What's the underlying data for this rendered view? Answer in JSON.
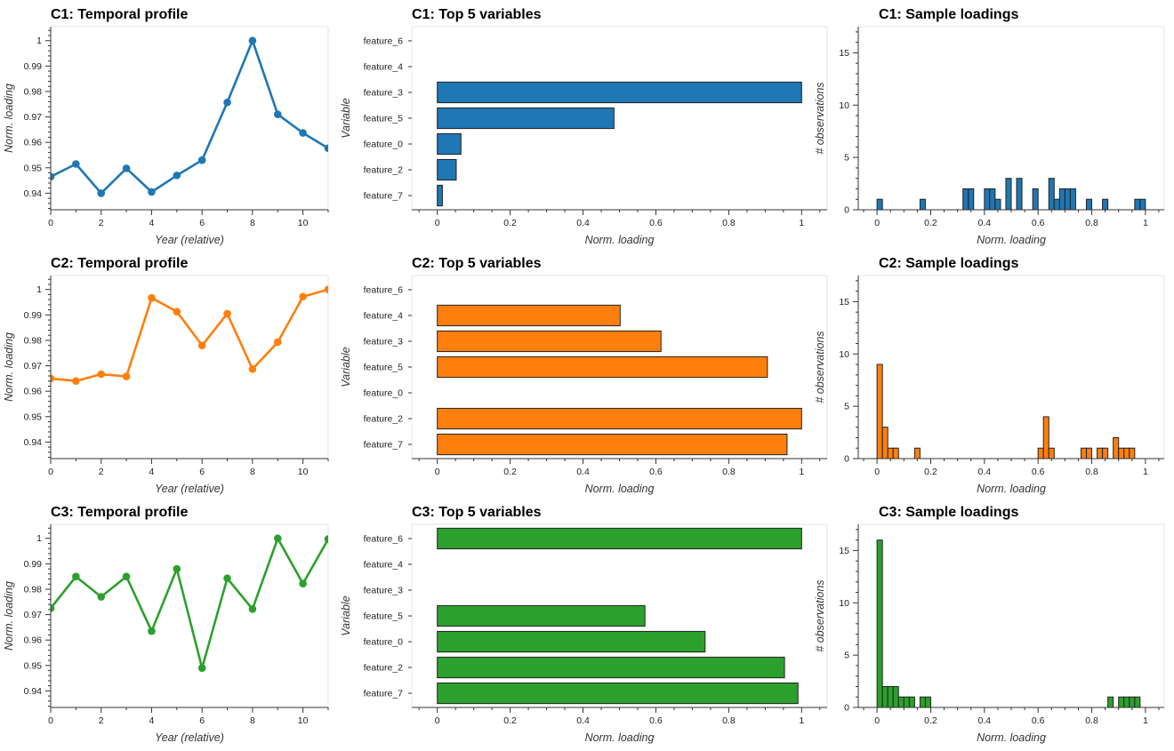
{
  "colors": {
    "C1": "#1f77b4",
    "C2": "#ff7f0e",
    "C3": "#2ca02c"
  },
  "chart_data": [
    {
      "id": "c1-temporal",
      "type": "line",
      "title": "C1: Temporal profile",
      "xlabel": "Year (relative)",
      "ylabel": "Norm. loading",
      "x": [
        0,
        1,
        2,
        3,
        4,
        5,
        6,
        7,
        8,
        9,
        10,
        11
      ],
      "series": [
        {
          "values": [
            0.9465,
            0.9515,
            0.94,
            0.9498,
            0.9405,
            0.947,
            0.953,
            0.9757,
            1.0,
            0.971,
            0.9637,
            0.9577
          ]
        }
      ],
      "xlim": [
        0,
        11
      ],
      "ylim": [
        0.9335,
        1.0055
      ],
      "xticks": [
        0,
        2,
        4,
        6,
        8,
        10
      ],
      "yticks": [
        0.94,
        0.95,
        0.96,
        0.97,
        0.98,
        0.99,
        1
      ],
      "grid": false,
      "color_key": "C1"
    },
    {
      "id": "c1-top",
      "type": "bar",
      "orientation": "horizontal",
      "title": "C1: Top 5 variables",
      "xlabel": "Norm. loading",
      "ylabel": "Variable",
      "categories": [
        "feature_6",
        "feature_4",
        "feature_3",
        "feature_5",
        "feature_0",
        "feature_2",
        "feature_7"
      ],
      "values": [
        0,
        0,
        1.0,
        0.485,
        0.065,
        0.052,
        0.014
      ],
      "xlim": [
        -0.07,
        1.07
      ],
      "xticks": [
        0,
        0.2,
        0.4,
        0.6,
        0.8,
        1
      ],
      "grid": false,
      "color_key": "C1"
    },
    {
      "id": "c1-hist",
      "type": "bar",
      "subtype": "histogram",
      "title": "C1: Sample loadings",
      "xlabel": "Norm. loading",
      "ylabel": "# observations",
      "bin_width": 0.02,
      "bins_start": [
        0.0,
        0.16,
        0.32,
        0.34,
        0.4,
        0.42,
        0.44,
        0.48,
        0.52,
        0.58,
        0.64,
        0.66,
        0.68,
        0.7,
        0.72,
        0.78,
        0.84,
        0.96,
        0.98
      ],
      "counts": [
        1,
        1,
        2,
        2,
        2,
        2,
        1,
        3,
        3,
        2,
        3,
        1,
        2,
        2,
        2,
        1,
        1,
        1,
        1
      ],
      "xlim": [
        -0.07,
        1.07
      ],
      "ylim": [
        0,
        17.5
      ],
      "xticks": [
        0,
        0.2,
        0.4,
        0.6,
        0.8,
        1
      ],
      "yticks": [
        0,
        5,
        10,
        15
      ],
      "grid": false,
      "color_key": "C1"
    },
    {
      "id": "c2-temporal",
      "type": "line",
      "title": "C2: Temporal profile",
      "xlabel": "Year (relative)",
      "ylabel": "Norm. loading",
      "x": [
        0,
        1,
        2,
        3,
        4,
        5,
        6,
        7,
        8,
        9,
        10,
        11
      ],
      "series": [
        {
          "values": [
            0.965,
            0.964,
            0.9667,
            0.9658,
            0.9967,
            0.9913,
            0.978,
            0.9905,
            0.9687,
            0.9793,
            0.9972,
            1.0
          ]
        }
      ],
      "xlim": [
        0,
        11
      ],
      "ylim": [
        0.9335,
        1.0055
      ],
      "xticks": [
        0,
        2,
        4,
        6,
        8,
        10
      ],
      "yticks": [
        0.94,
        0.95,
        0.96,
        0.97,
        0.98,
        0.99,
        1
      ],
      "grid": false,
      "color_key": "C2"
    },
    {
      "id": "c2-top",
      "type": "bar",
      "orientation": "horizontal",
      "title": "C2: Top 5 variables",
      "xlabel": "Norm. loading",
      "ylabel": "Variable",
      "categories": [
        "feature_6",
        "feature_4",
        "feature_3",
        "feature_5",
        "feature_0",
        "feature_2",
        "feature_7"
      ],
      "values": [
        0,
        0.502,
        0.614,
        0.906,
        0,
        1.0,
        0.96
      ],
      "xlim": [
        -0.07,
        1.07
      ],
      "xticks": [
        0,
        0.2,
        0.4,
        0.6,
        0.8,
        1
      ],
      "grid": false,
      "color_key": "C2"
    },
    {
      "id": "c2-hist",
      "type": "bar",
      "subtype": "histogram",
      "title": "C2: Sample loadings",
      "xlabel": "Norm. loading",
      "ylabel": "# observations",
      "bin_width": 0.02,
      "bins_start": [
        0.0,
        0.02,
        0.04,
        0.06,
        0.14,
        0.6,
        0.62,
        0.64,
        0.76,
        0.78,
        0.82,
        0.84,
        0.88,
        0.9,
        0.92,
        0.94
      ],
      "counts": [
        9,
        3,
        1,
        1,
        1,
        1,
        4,
        1,
        1,
        1,
        1,
        1,
        2,
        1,
        1,
        1
      ],
      "xlim": [
        -0.07,
        1.07
      ],
      "ylim": [
        0,
        17.5
      ],
      "xticks": [
        0,
        0.2,
        0.4,
        0.6,
        0.8,
        1
      ],
      "yticks": [
        0,
        5,
        10,
        15
      ],
      "grid": false,
      "color_key": "C2"
    },
    {
      "id": "c3-temporal",
      "type": "line",
      "title": "C3: Temporal profile",
      "xlabel": "Year (relative)",
      "ylabel": "Norm. loading",
      "x": [
        0,
        1,
        2,
        3,
        4,
        5,
        6,
        7,
        8,
        9,
        10,
        11
      ],
      "series": [
        {
          "values": [
            0.9725,
            0.985,
            0.977,
            0.985,
            0.9635,
            0.988,
            0.949,
            0.9843,
            0.9722,
            1.0,
            0.9822,
            0.9997
          ]
        }
      ],
      "xlim": [
        0,
        11
      ],
      "ylim": [
        0.9335,
        1.0055
      ],
      "xticks": [
        0,
        2,
        4,
        6,
        8,
        10
      ],
      "yticks": [
        0.94,
        0.95,
        0.96,
        0.97,
        0.98,
        0.99,
        1
      ],
      "grid": false,
      "color_key": "C3"
    },
    {
      "id": "c3-top",
      "type": "bar",
      "orientation": "horizontal",
      "title": "C3: Top 5 variables",
      "xlabel": "Norm. loading",
      "ylabel": "Variable",
      "categories": [
        "feature_6",
        "feature_4",
        "feature_3",
        "feature_5",
        "feature_0",
        "feature_2",
        "feature_7"
      ],
      "values": [
        1.0,
        0,
        0,
        0.57,
        0.735,
        0.953,
        0.99
      ],
      "xlim": [
        -0.07,
        1.07
      ],
      "xticks": [
        0,
        0.2,
        0.4,
        0.6,
        0.8,
        1
      ],
      "grid": false,
      "color_key": "C3"
    },
    {
      "id": "c3-hist",
      "type": "bar",
      "subtype": "histogram",
      "title": "C3: Sample loadings",
      "xlabel": "Norm. loading",
      "ylabel": "# observations",
      "bin_width": 0.02,
      "bins_start": [
        0.0,
        0.02,
        0.04,
        0.06,
        0.08,
        0.1,
        0.12,
        0.16,
        0.18,
        0.86,
        0.9,
        0.92,
        0.94,
        0.96
      ],
      "counts": [
        16,
        2,
        2,
        2,
        1,
        1,
        1,
        1,
        1,
        1,
        1,
        1,
        1,
        1
      ],
      "xlim": [
        -0.07,
        1.07
      ],
      "ylim": [
        0,
        17.5
      ],
      "xticks": [
        0,
        0.2,
        0.4,
        0.6,
        0.8,
        1
      ],
      "yticks": [
        0,
        5,
        10,
        15
      ],
      "grid": false,
      "color_key": "C3"
    }
  ]
}
